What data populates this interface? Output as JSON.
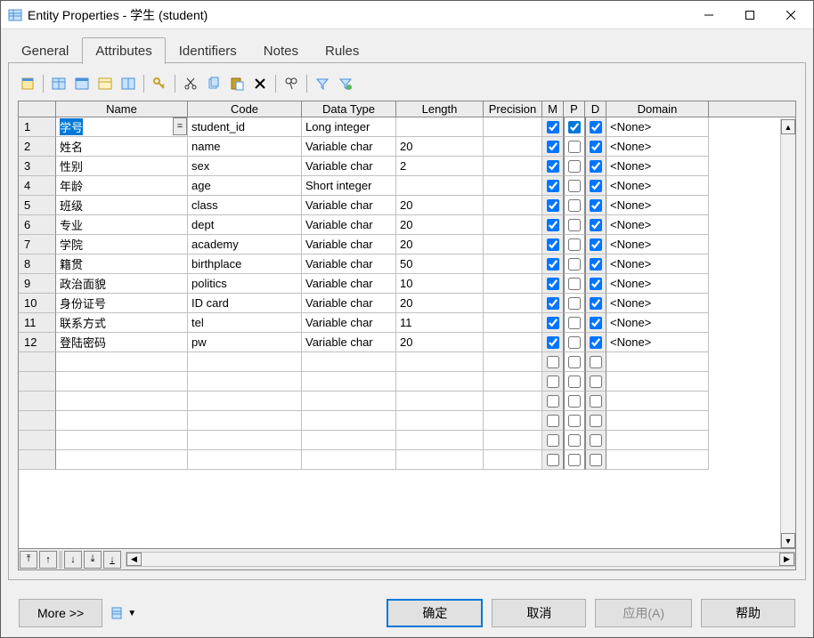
{
  "window": {
    "title": "Entity Properties - 学生 (student)"
  },
  "tabs": {
    "general": "General",
    "attributes": "Attributes",
    "identifiers": "Identifiers",
    "notes": "Notes",
    "rules": "Rules",
    "active": "attributes"
  },
  "grid": {
    "columns": {
      "rownum": "",
      "name": "Name",
      "code": "Code",
      "datatype": "Data Type",
      "length": "Length",
      "precision": "Precision",
      "m": "M",
      "p": "P",
      "d": "D",
      "domain": "Domain"
    },
    "rows": [
      {
        "num": "1",
        "name": "学号",
        "code": "student_id",
        "datatype": "Long integer",
        "length": "",
        "precision": "",
        "m": true,
        "p": true,
        "d": true,
        "domain": "<None>",
        "selected": true,
        "editing": true
      },
      {
        "num": "2",
        "name": "姓名",
        "code": "name",
        "datatype": "Variable char",
        "length": "20",
        "precision": "",
        "m": true,
        "p": false,
        "d": true,
        "domain": "<None>"
      },
      {
        "num": "3",
        "name": "性别",
        "code": "sex",
        "datatype": "Variable char",
        "length": "2",
        "precision": "",
        "m": true,
        "p": false,
        "d": true,
        "domain": "<None>"
      },
      {
        "num": "4",
        "name": "年龄",
        "code": "age",
        "datatype": "Short integer",
        "length": "",
        "precision": "",
        "m": true,
        "p": false,
        "d": true,
        "domain": "<None>"
      },
      {
        "num": "5",
        "name": "班级",
        "code": "class",
        "datatype": "Variable char",
        "length": "20",
        "precision": "",
        "m": true,
        "p": false,
        "d": true,
        "domain": "<None>"
      },
      {
        "num": "6",
        "name": "专业",
        "code": "dept",
        "datatype": "Variable char",
        "length": "20",
        "precision": "",
        "m": true,
        "p": false,
        "d": true,
        "domain": "<None>"
      },
      {
        "num": "7",
        "name": "学院",
        "code": "academy",
        "datatype": "Variable char",
        "length": "20",
        "precision": "",
        "m": true,
        "p": false,
        "d": true,
        "domain": "<None>"
      },
      {
        "num": "8",
        "name": "籍贯",
        "code": "birthplace",
        "datatype": "Variable char",
        "length": "50",
        "precision": "",
        "m": true,
        "p": false,
        "d": true,
        "domain": "<None>"
      },
      {
        "num": "9",
        "name": "政治面貌",
        "code": "politics",
        "datatype": "Variable char",
        "length": "10",
        "precision": "",
        "m": true,
        "p": false,
        "d": true,
        "domain": "<None>"
      },
      {
        "num": "10",
        "name": "身份证号",
        "code": "ID card",
        "datatype": "Variable char",
        "length": "20",
        "precision": "",
        "m": true,
        "p": false,
        "d": true,
        "domain": "<None>"
      },
      {
        "num": "11",
        "name": "联系方式",
        "code": "tel",
        "datatype": "Variable char",
        "length": "11",
        "precision": "",
        "m": true,
        "p": false,
        "d": true,
        "domain": "<None>"
      },
      {
        "num": "12",
        "name": "登陆密码",
        "code": "pw",
        "datatype": "Variable char",
        "length": "20",
        "precision": "",
        "m": true,
        "p": false,
        "d": true,
        "domain": "<None>"
      }
    ],
    "empty_rows": 6
  },
  "toolbar_icons": [
    "properties",
    "sep",
    "grid-1",
    "grid-2",
    "grid-3",
    "grid-4",
    "sep",
    "key",
    "sep",
    "cut",
    "copy",
    "paste",
    "delete",
    "sep",
    "find",
    "sep",
    "filter1",
    "filter2"
  ],
  "buttons": {
    "more": "More >>",
    "ok": "确定",
    "cancel": "取消",
    "apply": "应用(A)",
    "help": "帮助"
  },
  "colors": {
    "selection": "#0078d7",
    "border": "#adadad",
    "grid_border": "#888",
    "cell_border": "#c0c0c0",
    "bg": "#f0f0f0",
    "header_bg": "#ececec"
  }
}
